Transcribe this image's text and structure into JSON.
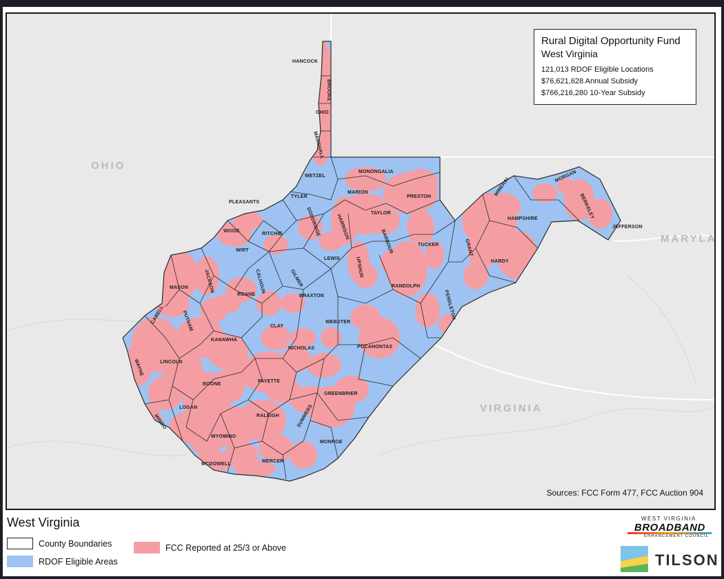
{
  "map": {
    "state_labels": [
      "OHIO",
      "MARYLAN",
      "VIRGINIA"
    ],
    "info_box": {
      "title": "Rural Digital Opportunity Fund",
      "subtitle": "West Virginia",
      "stats": [
        "121,013 RDOF Eligible Locations",
        "$76,621,628 Annual Subsidy",
        "$766,216,280 10-Year Subsidy"
      ]
    },
    "sources": "Sources: FCC Form 477, FCC Auction 904",
    "counties": [
      "HANCOCK",
      "BROOKE",
      "OHIO",
      "MARSHALL",
      "WETZEL",
      "MONONGALIA",
      "TYLER",
      "MARION",
      "PRESTON",
      "PLEASANTS",
      "DODDRIDGE",
      "HARRISON",
      "TAYLOR",
      "MINERAL",
      "MORGAN",
      "BERKELEY",
      "JEFFERSON",
      "HAMPSHIRE",
      "WOOD",
      "RITCHIE",
      "BARBOUR",
      "TUCKER",
      "GRANT",
      "HARDY",
      "WIRT",
      "LEWIS",
      "UPSHUR",
      "JACKSON",
      "MASON",
      "CALHOUN",
      "GILMER",
      "ROANE",
      "BRAXTON",
      "RANDOLPH",
      "PENDLETON",
      "CABELL",
      "PUTNAM",
      "WEBSTER",
      "CLAY",
      "KANAWHA",
      "POCAHONTAS",
      "WAYNE",
      "LINCOLN",
      "NICHOLAS",
      "BOONE",
      "FAYETTE",
      "GREENBRIER",
      "LOGAN",
      "MINGO",
      "RALEIGH",
      "SUMMERS",
      "WYOMING",
      "MONROE",
      "MCDOWELL",
      "MERCER"
    ],
    "colors": {
      "background": "#e9e9ea",
      "rdof_eligible": "#9ec3f2",
      "fcc_25_3": "#f49ea4",
      "boundary": "#2a2a2a"
    }
  },
  "legend": {
    "title": "West Virginia",
    "items": [
      {
        "label": "County Boundaries",
        "icon": "outline-swatch"
      },
      {
        "label": "RDOF Eligible Areas",
        "icon": "blue-swatch"
      },
      {
        "label": "FCC Reported at 25/3 or Above",
        "icon": "pink-swatch"
      }
    ]
  },
  "branding": {
    "wvbec_top": "WEST VIRGINIA",
    "wvbec_main": "BROADBAND",
    "wvbec_bottom": "ENHANCEMENT COUNCIL",
    "tilson": "TILSON"
  }
}
